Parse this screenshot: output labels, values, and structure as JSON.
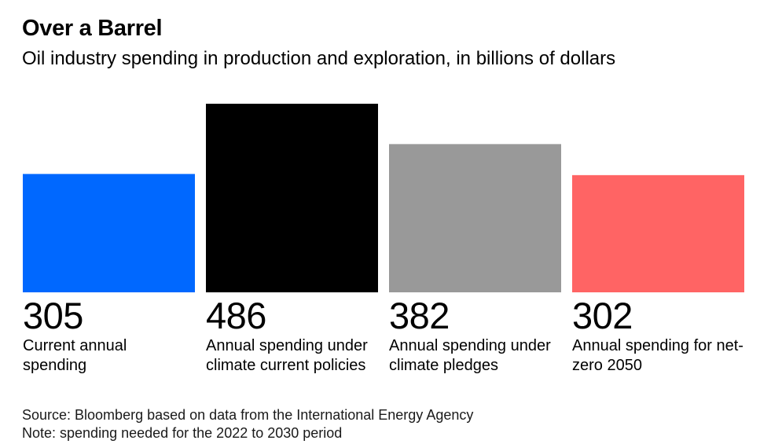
{
  "chart_data": {
    "type": "bar",
    "title": "Over a Barrel",
    "subtitle": "Oil industry spending in production and exploration, in billions of dollars",
    "categories": [
      "Current annual spending",
      "Annual spending under climate current policies",
      "Annual spending under climate pledges",
      "Annual spending for net-zero 2050"
    ],
    "values": [
      305,
      486,
      382,
      302
    ],
    "value_labels": [
      "305",
      "486",
      "382",
      "302"
    ],
    "colors": [
      "#0068ff",
      "#000000",
      "#999999",
      "#ff6464"
    ],
    "ylim": [
      0,
      486
    ],
    "xlabel": "",
    "ylabel": "",
    "grid": false
  },
  "footer": {
    "source": "Source: Bloomberg based on data from the International Energy Agency",
    "note": "Note: spending needed for the 2022 to 2030 period"
  }
}
